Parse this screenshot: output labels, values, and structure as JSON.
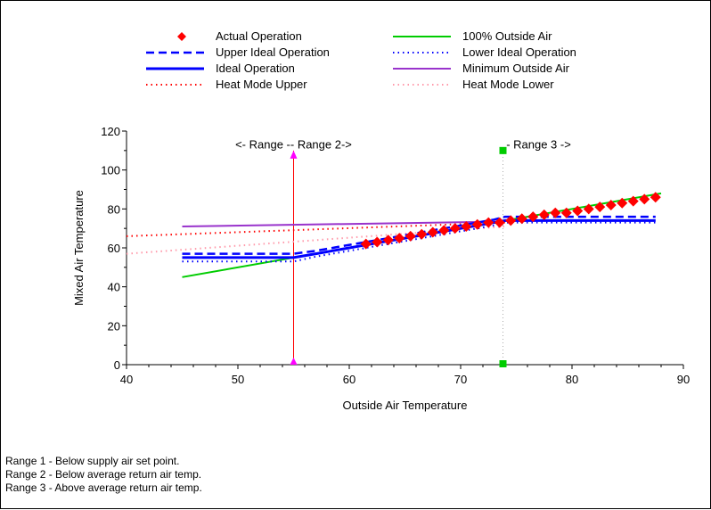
{
  "chart_data": {
    "type": "line",
    "xlabel": "Outside Air Temperature",
    "ylabel": "Mixed Air Temperature",
    "xlim": [
      40,
      90
    ],
    "ylim": [
      0,
      120
    ],
    "x_ticks": [
      "40",
      "50",
      "60",
      "70",
      "80",
      "90"
    ],
    "y_ticks": [
      "0",
      "20",
      "40",
      "60",
      "80",
      "100",
      "120"
    ],
    "grid": false,
    "legend_position": "top",
    "series": [
      {
        "name": "Actual Operation",
        "style": "diamond-markers",
        "color": "#ff0000",
        "x": [
          61.5,
          62.5,
          63.5,
          64.5,
          65.5,
          66.5,
          67.5,
          68.5,
          69.5,
          70.5,
          71.5,
          72.5,
          73.5,
          74.5,
          75.5,
          76.5,
          77.5,
          78.5,
          79.5,
          80.5,
          81.5,
          82.5,
          83.5,
          84.5,
          85.5,
          86.5,
          87.5
        ],
        "y": [
          62,
          63,
          64,
          65,
          66,
          67,
          68,
          69,
          70,
          71,
          72,
          73,
          73,
          74,
          75,
          76,
          77,
          78,
          78,
          79,
          80,
          81,
          82,
          83,
          84,
          85,
          86
        ]
      },
      {
        "name": "Upper Ideal Operation",
        "style": "dashed",
        "color": "#0000ff",
        "x": [
          45,
          55,
          57,
          59,
          61,
          63,
          65,
          67,
          69,
          71,
          73,
          74,
          87.5
        ],
        "y": [
          57,
          57,
          58.5,
          60.5,
          62.5,
          64.5,
          66.5,
          68.5,
          70.5,
          72.5,
          74.5,
          76,
          76
        ]
      },
      {
        "name": "Ideal Operation",
        "style": "solid-thick",
        "color": "#0000ff",
        "x": [
          45,
          55,
          57,
          59,
          61,
          63,
          65,
          67,
          69,
          71,
          73,
          74,
          87.5
        ],
        "y": [
          55,
          55,
          57,
          59,
          61,
          63,
          65,
          67,
          69,
          71,
          73,
          74,
          74
        ]
      },
      {
        "name": "Heat Mode Upper",
        "style": "dotted",
        "color": "#ff0000",
        "x": [
          40,
          74
        ],
        "y": [
          66,
          73
        ]
      },
      {
        "name": "100% Outside Air",
        "style": "solid",
        "color": "#00cc00",
        "x": [
          45,
          88
        ],
        "y": [
          45,
          88
        ]
      },
      {
        "name": "Lower Ideal Operation",
        "style": "dotted",
        "color": "#0000ff",
        "x": [
          45,
          55,
          57,
          59,
          61,
          63,
          65,
          67,
          69,
          71,
          73,
          74,
          87.5
        ],
        "y": [
          53,
          53,
          55.5,
          57.5,
          59.5,
          61.5,
          63.5,
          65.5,
          67.5,
          69.5,
          71.5,
          73,
          73
        ]
      },
      {
        "name": "Minimum Outside Air",
        "style": "solid",
        "color": "#9933cc",
        "x": [
          45,
          74
        ],
        "y": [
          71,
          73.5
        ]
      },
      {
        "name": "Heat Mode Lower",
        "style": "dotted",
        "color": "#ff99aa",
        "x": [
          40,
          74
        ],
        "y": [
          57,
          71
        ]
      }
    ],
    "markers": [
      {
        "type": "vertical-line",
        "x": 55,
        "y_range": [
          0,
          110
        ],
        "color": "#ff0000",
        "end_color": "#ff00ff"
      },
      {
        "type": "vertical-dotted",
        "x": 73.8,
        "y_range": [
          0,
          110
        ],
        "color": "#aaaaaa",
        "end_color": "#00cc00"
      }
    ],
    "annotations": [
      {
        "text": "<- Range -- Range 2->",
        "x": 55,
        "y": 113
      },
      {
        "text": "- Range 3 ->",
        "x": 77,
        "y": 113
      }
    ]
  },
  "notes": [
    "Range 1 - Below supply air set point.",
    "Range 2 - Below average return air temp.",
    "Range 3 - Above average return air temp."
  ]
}
